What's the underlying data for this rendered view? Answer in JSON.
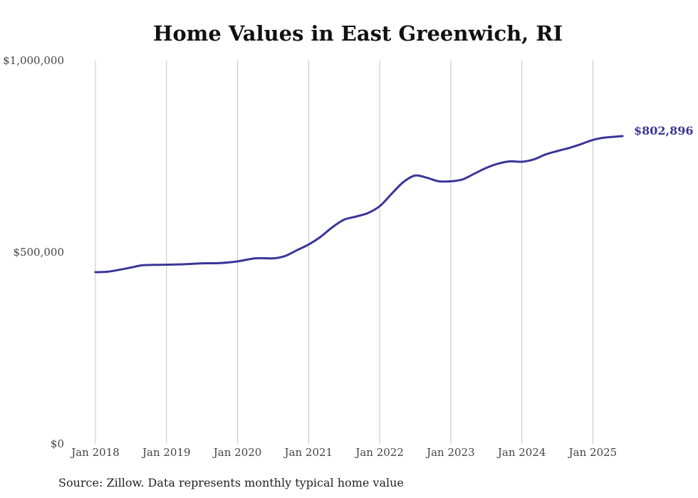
{
  "chart_data": {
    "type": "line",
    "title": "Home Values in East Greenwich, RI",
    "source_note": "Source: Zillow. Data represents monthly typical home value",
    "xlabel": "",
    "ylabel": "",
    "ylim": [
      0,
      1000000
    ],
    "xlim": [
      2018.0,
      2025.4167
    ],
    "y_ticks": [
      {
        "value": 0,
        "label": "$0"
      },
      {
        "value": 500000,
        "label": "$500,000"
      },
      {
        "value": 1000000,
        "label": "$1,000,000"
      }
    ],
    "x_ticks": [
      {
        "value": 2018,
        "label": "Jan 2018"
      },
      {
        "value": 2019,
        "label": "Jan 2019"
      },
      {
        "value": 2020,
        "label": "Jan 2020"
      },
      {
        "value": 2021,
        "label": "Jan 2021"
      },
      {
        "value": 2022,
        "label": "Jan 2022"
      },
      {
        "value": 2023,
        "label": "Jan 2023"
      },
      {
        "value": 2024,
        "label": "Jan 2024"
      },
      {
        "value": 2025,
        "label": "Jan 2025"
      }
    ],
    "grid": "vertical",
    "line_color": "#3a3697",
    "series": [
      {
        "name": "Typical home value",
        "points": [
          [
            2018.0,
            448000
          ],
          [
            2018.1667,
            449000
          ],
          [
            2018.3333,
            454000
          ],
          [
            2018.5,
            460000
          ],
          [
            2018.6667,
            466000
          ],
          [
            2018.8333,
            467000
          ],
          [
            2019.0,
            467500
          ],
          [
            2019.25,
            468500
          ],
          [
            2019.5,
            471000
          ],
          [
            2019.75,
            471500
          ],
          [
            2020.0,
            476000
          ],
          [
            2020.25,
            484000
          ],
          [
            2020.5,
            484000
          ],
          [
            2020.6667,
            490000
          ],
          [
            2020.8333,
            505000
          ],
          [
            2021.0,
            520000
          ],
          [
            2021.1667,
            540000
          ],
          [
            2021.3333,
            565000
          ],
          [
            2021.5,
            585000
          ],
          [
            2021.6667,
            593000
          ],
          [
            2021.8333,
            602000
          ],
          [
            2022.0,
            620000
          ],
          [
            2022.1667,
            652000
          ],
          [
            2022.3333,
            683000
          ],
          [
            2022.5,
            700000
          ],
          [
            2022.6667,
            694000
          ],
          [
            2022.8333,
            685000
          ],
          [
            2023.0,
            685000
          ],
          [
            2023.1667,
            690000
          ],
          [
            2023.3333,
            705000
          ],
          [
            2023.5,
            720000
          ],
          [
            2023.6667,
            731000
          ],
          [
            2023.8333,
            737000
          ],
          [
            2024.0,
            736000
          ],
          [
            2024.1667,
            742000
          ],
          [
            2024.3333,
            755000
          ],
          [
            2024.5,
            764000
          ],
          [
            2024.6667,
            772000
          ],
          [
            2024.8333,
            782000
          ],
          [
            2025.0,
            793000
          ],
          [
            2025.1667,
            799000
          ],
          [
            2025.4167,
            802896
          ]
        ]
      }
    ],
    "end_label": "$802,896"
  }
}
